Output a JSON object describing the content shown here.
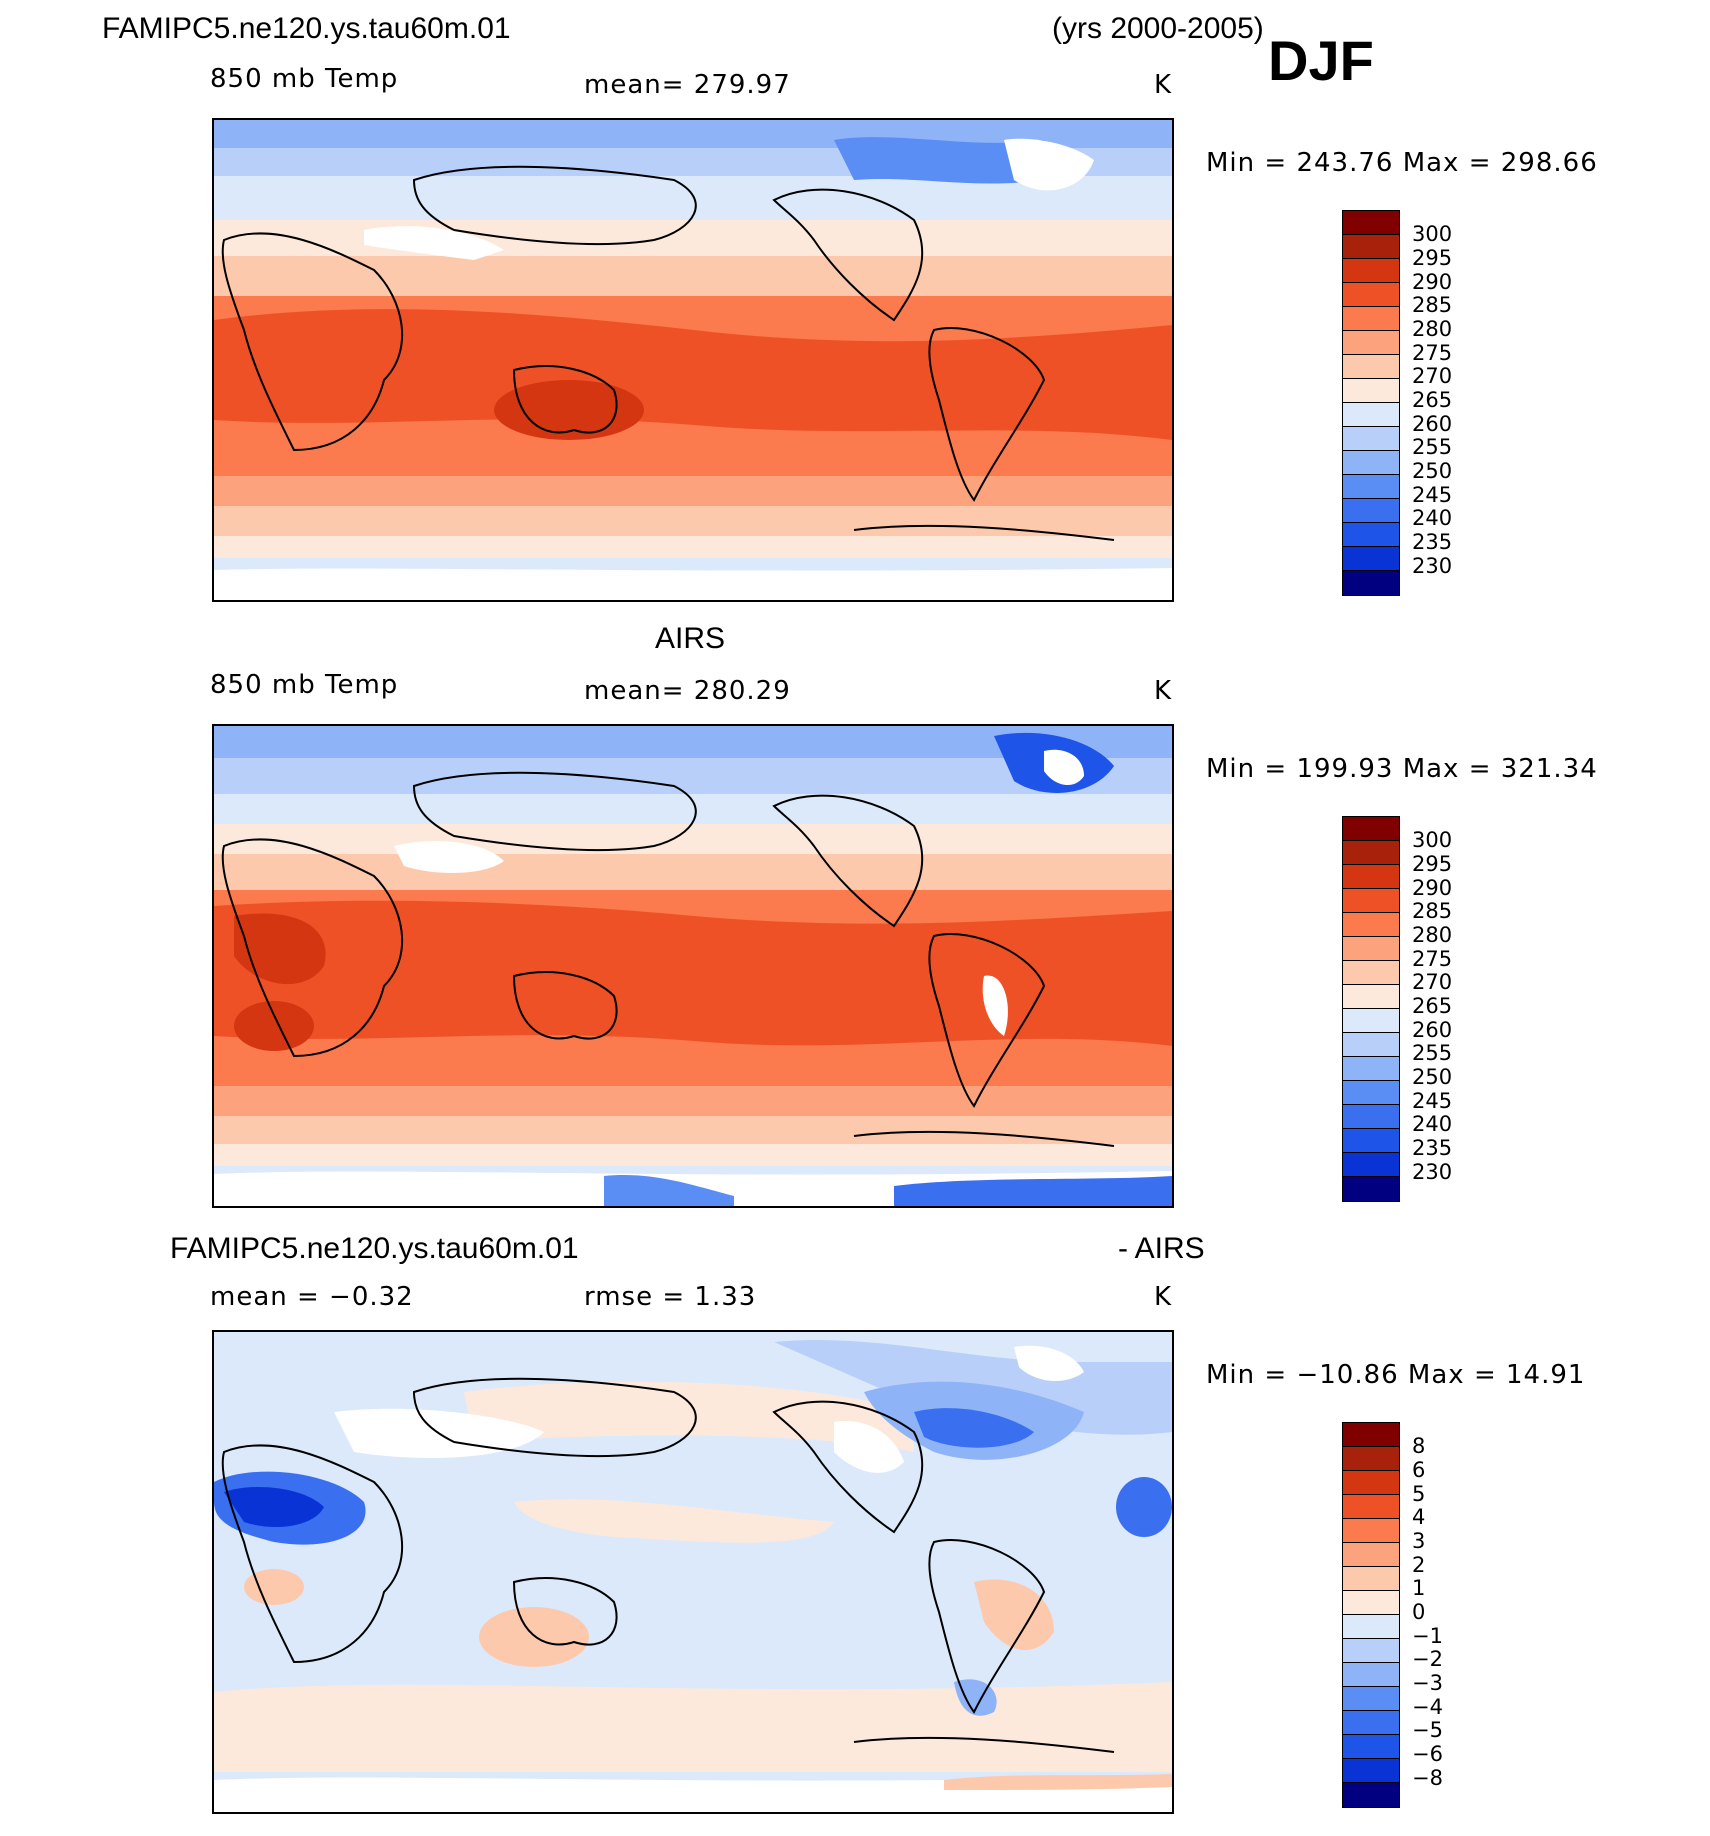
{
  "header": {
    "case_name": "FAMIPC5.ne120.ys.tau60m.01",
    "years": "(yrs 2000-2005)",
    "season": "DJF"
  },
  "panels": [
    {
      "title": "",
      "variable": "850 mb Temp",
      "stat": "mean=  279.97",
      "units": "K",
      "minmax": "Min  =  243.76  Max  =  298.66",
      "colorbar_labels": [
        "300",
        "295",
        "290",
        "285",
        "280",
        "275",
        "270",
        "265",
        "260",
        "255",
        "250",
        "245",
        "240",
        "235",
        "230"
      ],
      "map": "model"
    },
    {
      "title": "AIRS",
      "variable": "850 mb Temp",
      "stat": "mean=  280.29",
      "units": "K",
      "minmax": "Min  =  199.93  Max  =  321.34",
      "colorbar_labels": [
        "300",
        "295",
        "290",
        "285",
        "280",
        "275",
        "270",
        "265",
        "260",
        "255",
        "250",
        "245",
        "240",
        "235",
        "230"
      ],
      "map": "obs"
    },
    {
      "title_left": "FAMIPC5.ne120.ys.tau60m.01",
      "title_right": "- AIRS",
      "stat_mean": "mean  =   −0.32",
      "stat_rmse": "rmse  =     1.33",
      "units": "K",
      "minmax": "Min  =  −10.86  Max  =    14.91",
      "colorbar_labels": [
        "8",
        "6",
        "5",
        "4",
        "3",
        "2",
        "1",
        "0",
        "−1",
        "−2",
        "−3",
        "−4",
        "−5",
        "−6",
        "−8"
      ],
      "map": "diff"
    }
  ],
  "colors": {
    "scale": [
      "#000080",
      "#0a1fb0",
      "#0a33d6",
      "#1e55e8",
      "#3a6ff0",
      "#5a8ef5",
      "#8fb3f7",
      "#b8cff9",
      "#dce9fb",
      "#fde9db",
      "#fdc9ad",
      "#fca37e",
      "#fb7a4e",
      "#ef5126",
      "#d43611",
      "#a8210a",
      "#800000"
    ]
  },
  "chart_data": {
    "type": "heatmap",
    "title": "850 mb Temp",
    "season": "DJF",
    "panels": [
      {
        "name": "FAMIPC5.ne120.ys.tau60m.01",
        "units": "K",
        "mean": 279.97,
        "min": 243.76,
        "max": 298.66,
        "levels": [
          230,
          235,
          240,
          245,
          250,
          255,
          260,
          265,
          270,
          275,
          280,
          285,
          290,
          295,
          300
        ]
      },
      {
        "name": "AIRS",
        "units": "K",
        "mean": 280.29,
        "min": 199.93,
        "max": 321.34,
        "levels": [
          230,
          235,
          240,
          245,
          250,
          255,
          260,
          265,
          270,
          275,
          280,
          285,
          290,
          295,
          300
        ]
      },
      {
        "name": "FAMIPC5.ne120.ys.tau60m.01 - AIRS",
        "units": "K",
        "mean": -0.32,
        "rmse": 1.33,
        "min": -10.86,
        "max": 14.91,
        "levels": [
          -8,
          -6,
          -5,
          -4,
          -3,
          -2,
          -1,
          0,
          1,
          2,
          3,
          4,
          5,
          6,
          8
        ]
      }
    ]
  }
}
